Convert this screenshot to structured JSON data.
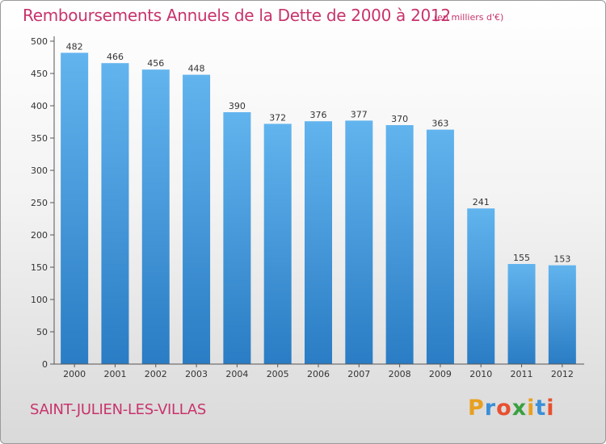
{
  "chart_data": {
    "type": "bar",
    "title": "Remboursements Annuels de la Dette de 2000 à 2012",
    "unit_note": "(en milliers d'€)",
    "categories": [
      "2000",
      "2001",
      "2002",
      "2003",
      "2004",
      "2005",
      "2006",
      "2007",
      "2008",
      "2009",
      "2010",
      "2011",
      "2012"
    ],
    "values": [
      482,
      466,
      456,
      448,
      390,
      372,
      376,
      377,
      370,
      363,
      241,
      155,
      153
    ],
    "ylim": [
      0,
      500
    ],
    "yticks": [
      0,
      50,
      100,
      150,
      200,
      250,
      300,
      350,
      400,
      450,
      500
    ],
    "xlabel": "",
    "ylabel": "",
    "grid": false,
    "bar_color": "#4a9fe0",
    "title_color": "#c8336c"
  },
  "footer": {
    "city": "SAINT-JULIEN-LES-VILLAS",
    "logo_letters": [
      {
        "ch": "P",
        "color": "#e8a020"
      },
      {
        "ch": "r",
        "color": "#3a8fd8"
      },
      {
        "ch": "o",
        "color": "#e85030"
      },
      {
        "ch": "x",
        "color": "#3aa040"
      },
      {
        "ch": "i",
        "color": "#e8a020"
      },
      {
        "ch": "t",
        "color": "#3a8fd8"
      },
      {
        "ch": "i",
        "color": "#e85030"
      }
    ]
  }
}
